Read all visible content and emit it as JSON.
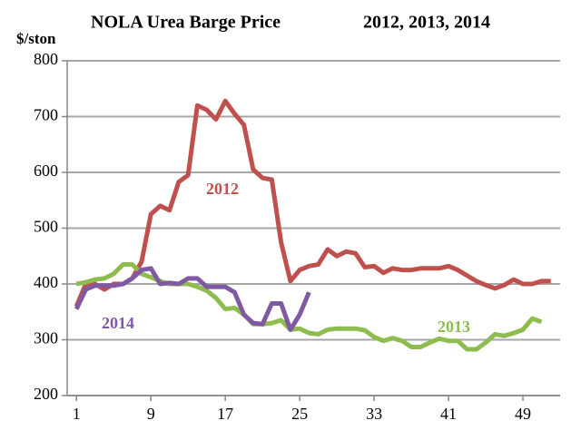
{
  "chart_data": {
    "type": "line",
    "title": "NOLA Urea Barge Price",
    "subtitle": "2012, 2013, 2014",
    "y_label": "$/ston",
    "xlim": [
      0,
      53
    ],
    "xticks": [
      1,
      9,
      17,
      25,
      33,
      41,
      49
    ],
    "ylim": [
      200,
      800
    ],
    "yticks": [
      200,
      300,
      400,
      500,
      600,
      700,
      800
    ],
    "grid": true,
    "series": [
      {
        "name": "2012",
        "color": "#c0504d",
        "x": [
          1,
          2,
          3,
          4,
          5,
          6,
          7,
          8,
          9,
          10,
          11,
          12,
          13,
          14,
          15,
          16,
          17,
          18,
          19,
          20,
          21,
          22,
          23,
          24,
          25,
          26,
          27,
          28,
          29,
          30,
          31,
          32,
          33,
          34,
          35,
          36,
          37,
          38,
          39,
          40,
          41,
          42,
          43,
          44,
          45,
          46,
          47,
          48,
          49,
          50,
          51,
          52
        ],
        "values": [
          360,
          400,
          400,
          390,
          400,
          400,
          410,
          440,
          525,
          540,
          532,
          583,
          595,
          720,
          712,
          695,
          728,
          705,
          685,
          605,
          590,
          587,
          475,
          405,
          425,
          432,
          435,
          462,
          450,
          458,
          455,
          430,
          432,
          420,
          428,
          425,
          425,
          428,
          428,
          428,
          432,
          425,
          415,
          405,
          398,
          392,
          398,
          408,
          400,
          400,
          405,
          405
        ]
      },
      {
        "name": "2013",
        "color": "#8fbc4f",
        "x": [
          1,
          2,
          3,
          4,
          5,
          6,
          7,
          8,
          9,
          10,
          11,
          12,
          13,
          14,
          15,
          16,
          17,
          18,
          19,
          20,
          21,
          22,
          23,
          24,
          25,
          26,
          27,
          28,
          29,
          30,
          31,
          32,
          33,
          34,
          35,
          36,
          37,
          38,
          39,
          40,
          41,
          42,
          43,
          44,
          45,
          46,
          47,
          48,
          49,
          50,
          51
        ],
        "values": [
          400,
          403,
          408,
          410,
          418,
          435,
          435,
          418,
          412,
          405,
          400,
          400,
          400,
          395,
          388,
          375,
          355,
          357,
          345,
          328,
          328,
          330,
          335,
          318,
          320,
          312,
          310,
          318,
          320,
          320,
          320,
          317,
          305,
          298,
          303,
          298,
          287,
          287,
          295,
          302,
          298,
          298,
          283,
          283,
          295,
          310,
          307,
          312,
          318,
          338,
          332
        ]
      },
      {
        "name": "2014",
        "color": "#7f5aa2",
        "x": [
          1,
          2,
          3,
          4,
          5,
          6,
          7,
          8,
          9,
          10,
          11,
          12,
          13,
          14,
          15,
          16,
          17,
          18,
          19,
          20,
          21,
          22,
          23,
          24,
          25,
          26
        ],
        "values": [
          355,
          390,
          397,
          397,
          397,
          400,
          410,
          425,
          428,
          400,
          402,
          400,
          410,
          410,
          395,
          395,
          395,
          385,
          345,
          330,
          328,
          365,
          365,
          318,
          345,
          385
        ]
      }
    ]
  }
}
